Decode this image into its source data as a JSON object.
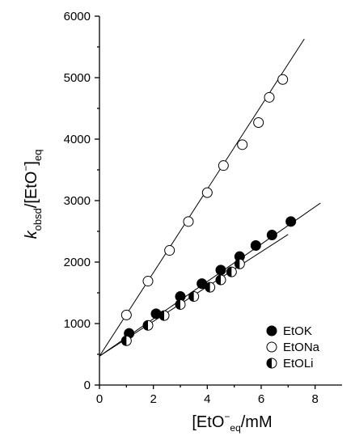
{
  "chart_data": {
    "type": "scatter",
    "xlabel": {
      "pre": "[EtO",
      "sup": "−",
      "sub": "eq",
      "post": "/mM"
    },
    "ylabel": {
      "k": "k",
      "obsd": "obsd",
      "mid": "/[EtO",
      "sup": "−",
      "close": "]",
      "sub": "eq"
    },
    "xlim": [
      0,
      9
    ],
    "ylim": [
      0,
      6000
    ],
    "x_ticks": [
      0,
      2,
      4,
      6,
      8
    ],
    "y_ticks": [
      0,
      1000,
      2000,
      3000,
      4000,
      5000,
      6000
    ],
    "legend_position": "bottom-right",
    "series": [
      {
        "name": "EtOK",
        "marker": "filled",
        "x": [
          1.1,
          2.1,
          3.0,
          3.8,
          4.5,
          5.2,
          5.8,
          6.4,
          7.1
        ],
        "y": [
          840,
          1160,
          1440,
          1650,
          1870,
          2090,
          2270,
          2440,
          2660
        ],
        "fit": {
          "x0": 0,
          "y0": 470,
          "x1": 8.2,
          "y1": 2960
        }
      },
      {
        "name": "EtONa",
        "marker": "open",
        "x": [
          1.0,
          1.8,
          2.6,
          3.3,
          4.0,
          4.6,
          5.3,
          5.9,
          6.3,
          6.8
        ],
        "y": [
          1140,
          1690,
          2190,
          2660,
          3130,
          3570,
          3910,
          4270,
          4680,
          4970
        ],
        "fit": {
          "x0": 0,
          "y0": 470,
          "x1": 7.6,
          "y1": 5630
        }
      },
      {
        "name": "EtOLi",
        "marker": "half",
        "x": [
          1.0,
          1.8,
          2.4,
          3.0,
          3.5,
          4.1,
          4.5,
          4.9,
          5.2
        ],
        "y": [
          720,
          970,
          1130,
          1310,
          1440,
          1590,
          1710,
          1840,
          1970
        ],
        "fit": {
          "x0": 0,
          "y0": 470,
          "x1": 7.0,
          "y1": 2450
        }
      }
    ]
  }
}
